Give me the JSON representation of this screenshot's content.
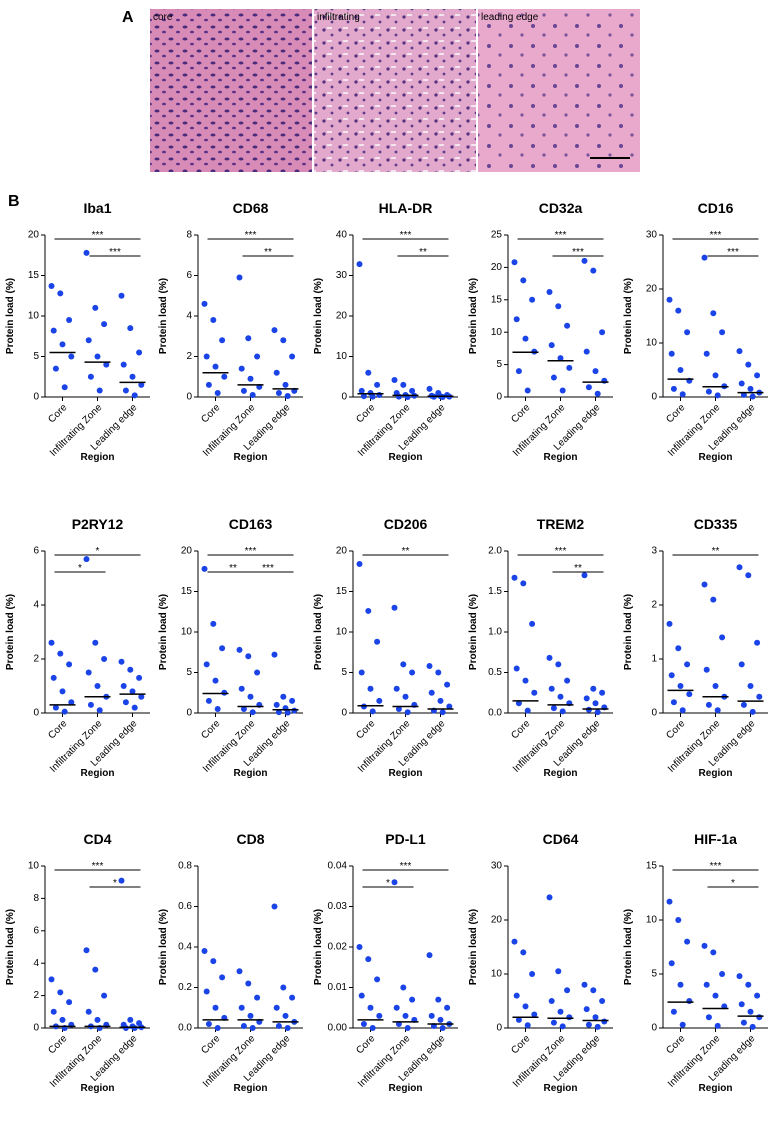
{
  "panel_a": {
    "label": "A",
    "images": [
      "core",
      "infiltrating",
      "leading edge"
    ]
  },
  "panel_b": {
    "label": "B"
  },
  "chart_data": [
    {
      "type": "dotplot",
      "title": "Iba1",
      "ylabel": "Protein load (%)",
      "xlabel": "Region",
      "categories": [
        "Core",
        "Infiltrating Zone",
        "Leading edge"
      ],
      "color": "#1a44e8",
      "values": [
        [
          13.7,
          12.8,
          9.5,
          8.2,
          6.5,
          5,
          3.5,
          1.2
        ],
        [
          17.8,
          11,
          9,
          7,
          5,
          4,
          2.5,
          0.8
        ],
        [
          12.5,
          8.5,
          5.5,
          4,
          2.5,
          1.5,
          0.8,
          0.2
        ]
      ],
      "medians": [
        5.5,
        4.3,
        1.8
      ],
      "ylim": [
        0,
        20
      ],
      "yticks": [
        0,
        5,
        10,
        15,
        20
      ],
      "comparisons": [
        {
          "from": 0,
          "to": 2,
          "label": "***"
        },
        {
          "from": 1,
          "to": 2,
          "label": "***"
        }
      ]
    },
    {
      "type": "dotplot",
      "title": "CD68",
      "ylabel": "Protein load (%)",
      "xlabel": "Region",
      "categories": [
        "Core",
        "Infiltrating Zone",
        "Leading edge"
      ],
      "color": "#1a44e8",
      "values": [
        [
          4.6,
          3.8,
          2.8,
          2,
          1.5,
          1,
          0.6,
          0.2
        ],
        [
          5.9,
          2.9,
          2,
          1.4,
          0.9,
          0.5,
          0.3,
          0.1
        ],
        [
          3.3,
          2.8,
          2,
          1.2,
          0.6,
          0.3,
          0.2,
          0.05
        ]
      ],
      "medians": [
        1.2,
        0.6,
        0.4
      ],
      "ylim": [
        0,
        8
      ],
      "yticks": [
        0,
        2,
        4,
        6,
        8
      ],
      "comparisons": [
        {
          "from": 0,
          "to": 2,
          "label": "***"
        },
        {
          "from": 1,
          "to": 2,
          "label": "**"
        }
      ]
    },
    {
      "type": "dotplot",
      "title": "HLA-DR",
      "ylabel": "Protein load (%)",
      "xlabel": "Region",
      "categories": [
        "Core",
        "Infiltrating Zone",
        "Leading edge"
      ],
      "color": "#1a44e8",
      "values": [
        [
          32.8,
          6,
          3,
          1.5,
          1,
          0.5,
          0.2,
          0.1
        ],
        [
          4.2,
          3,
          1.5,
          1,
          0.5,
          0.3,
          0.1,
          0
        ],
        [
          2,
          1,
          0.5,
          0.3,
          0.2,
          0.1,
          0.05,
          0
        ]
      ],
      "medians": [
        0.8,
        0.4,
        0.2
      ],
      "ylim": [
        0,
        40
      ],
      "yticks": [
        0,
        10,
        20,
        30,
        40
      ],
      "comparisons": [
        {
          "from": 0,
          "to": 2,
          "label": "***"
        },
        {
          "from": 1,
          "to": 2,
          "label": "**"
        }
      ]
    },
    {
      "type": "dotplot",
      "title": "CD32a",
      "ylabel": "Protein load (%)",
      "xlabel": "Region",
      "categories": [
        "Core",
        "Infiltrating Zone",
        "Leading edge"
      ],
      "color": "#1a44e8",
      "values": [
        [
          20.8,
          18,
          15,
          12,
          9,
          7,
          4,
          1
        ],
        [
          16.2,
          14,
          11,
          8,
          6,
          4.5,
          3,
          1
        ],
        [
          21,
          19.5,
          10,
          7,
          4,
          2.5,
          1.5,
          0.5
        ]
      ],
      "medians": [
        6.9,
        5.6,
        2.3
      ],
      "ylim": [
        0,
        25
      ],
      "yticks": [
        0,
        5,
        10,
        15,
        20,
        25
      ],
      "comparisons": [
        {
          "from": 0,
          "to": 2,
          "label": "***"
        },
        {
          "from": 1,
          "to": 2,
          "label": "***"
        }
      ]
    },
    {
      "type": "dotplot",
      "title": "CD16",
      "ylabel": "Protein load (%)",
      "xlabel": "Region",
      "categories": [
        "Core",
        "Infiltrating Zone",
        "Leading edge"
      ],
      "color": "#1a44e8",
      "values": [
        [
          18,
          16,
          12,
          8,
          5,
          3,
          1.5,
          0.5
        ],
        [
          25.8,
          15.5,
          12,
          8,
          4,
          2,
          1,
          0.3
        ],
        [
          8.5,
          6,
          4,
          2.5,
          1.5,
          0.8,
          0.4,
          0.1
        ]
      ],
      "medians": [
        3.3,
        1.9,
        0.8
      ],
      "ylim": [
        0,
        30
      ],
      "yticks": [
        0,
        10,
        20,
        30
      ],
      "comparisons": [
        {
          "from": 0,
          "to": 2,
          "label": "***"
        },
        {
          "from": 1,
          "to": 2,
          "label": "***"
        }
      ]
    },
    {
      "type": "dotplot",
      "title": "P2RY12",
      "ylabel": "Protein load (%)",
      "xlabel": "Region",
      "categories": [
        "Core",
        "Infiltrating Zone",
        "Leading edge"
      ],
      "color": "#1a44e8",
      "values": [
        [
          2.6,
          2.2,
          1.8,
          1.3,
          0.8,
          0.4,
          0.2,
          0.05
        ],
        [
          5.7,
          2.6,
          2,
          1.5,
          1,
          0.6,
          0.3,
          0.1
        ],
        [
          1.9,
          1.6,
          1.3,
          1,
          0.8,
          0.6,
          0.4,
          0.2
        ]
      ],
      "medians": [
        0.3,
        0.6,
        0.7
      ],
      "ylim": [
        0,
        6
      ],
      "yticks": [
        0,
        2,
        4,
        6
      ],
      "comparisons": [
        {
          "from": 0,
          "to": 2,
          "label": "*"
        },
        {
          "from": 0,
          "to": 1,
          "label": "*"
        }
      ]
    },
    {
      "type": "dotplot",
      "title": "CD163",
      "ylabel": "Protein load (%)",
      "xlabel": "Region",
      "categories": [
        "Core",
        "Infiltrating Zone",
        "Leading edge"
      ],
      "color": "#1a44e8",
      "values": [
        [
          17.8,
          11,
          8,
          6,
          4,
          2.5,
          1.5,
          0.5
        ],
        [
          7.8,
          7,
          5,
          3,
          2,
          1,
          0.5,
          0.1
        ],
        [
          7.2,
          2,
          1.5,
          1,
          0.6,
          0.3,
          0.1,
          0.05
        ]
      ],
      "medians": [
        2.4,
        0.8,
        0.4
      ],
      "ylim": [
        0,
        20
      ],
      "yticks": [
        0,
        5,
        10,
        15,
        20
      ],
      "comparisons": [
        {
          "from": 0,
          "to": 2,
          "label": "***"
        },
        {
          "from": 0,
          "to": 1,
          "label": "**"
        },
        {
          "from": 1,
          "to": 2,
          "label": "***"
        }
      ]
    },
    {
      "type": "dotplot",
      "title": "CD206",
      "ylabel": "Protein load (%)",
      "xlabel": "Region",
      "categories": [
        "Core",
        "Infiltrating Zone",
        "Leading edge"
      ],
      "color": "#1a44e8",
      "values": [
        [
          18.4,
          12.6,
          8.8,
          5,
          3,
          1.5,
          0.8,
          0.2
        ],
        [
          13,
          6,
          5,
          3,
          2,
          1,
          0.5,
          0.1
        ],
        [
          5.8,
          5,
          3.5,
          2.5,
          1.5,
          0.8,
          0.3,
          0.1
        ]
      ],
      "medians": [
        0.9,
        0.8,
        0.5
      ],
      "ylim": [
        0,
        20
      ],
      "yticks": [
        0,
        5,
        10,
        15,
        20
      ],
      "comparisons": [
        {
          "from": 0,
          "to": 2,
          "label": "**"
        }
      ]
    },
    {
      "type": "dotplot",
      "title": "TREM2",
      "ylabel": "Protein load (%)",
      "xlabel": "Region",
      "categories": [
        "Core",
        "Infiltrating Zone",
        "Leading edge"
      ],
      "color": "#1a44e8",
      "values": [
        [
          1.67,
          1.6,
          1.1,
          0.55,
          0.4,
          0.25,
          0.12,
          0.03
        ],
        [
          0.68,
          0.6,
          0.4,
          0.3,
          0.2,
          0.12,
          0.06,
          0.02
        ],
        [
          1.7,
          0.3,
          0.25,
          0.18,
          0.12,
          0.07,
          0.04,
          0.01
        ]
      ],
      "medians": [
        0.15,
        0.1,
        0.05
      ],
      "ylim": [
        0,
        2
      ],
      "yticks": [
        {
          "value": 0,
          "label": "0.0"
        },
        {
          "value": 0.5,
          "label": "0.5"
        },
        {
          "value": 1,
          "label": "1.0"
        },
        {
          "value": 1.5,
          "label": "1.5"
        },
        {
          "value": 2,
          "label": "2.0"
        }
      ],
      "comparisons": [
        {
          "from": 0,
          "to": 2,
          "label": "***"
        },
        {
          "from": 1,
          "to": 2,
          "label": "**"
        }
      ]
    },
    {
      "type": "dotplot",
      "title": "CD335",
      "ylabel": "Protein load (%)",
      "xlabel": "Region",
      "categories": [
        "Core",
        "Infiltrating Zone",
        "Leading edge"
      ],
      "color": "#1a44e8",
      "values": [
        [
          1.65,
          1.2,
          0.9,
          0.7,
          0.5,
          0.35,
          0.2,
          0.05
        ],
        [
          2.38,
          2.1,
          1.4,
          0.8,
          0.5,
          0.3,
          0.15,
          0.05
        ],
        [
          2.7,
          2.55,
          1.3,
          0.9,
          0.5,
          0.3,
          0.15,
          0.02
        ]
      ],
      "medians": [
        0.42,
        0.3,
        0.22
      ],
      "ylim": [
        0,
        3
      ],
      "yticks": [
        0,
        1,
        2,
        3
      ],
      "comparisons": [
        {
          "from": 0,
          "to": 2,
          "label": "**"
        }
      ]
    },
    {
      "type": "dotplot",
      "title": "CD4",
      "ylabel": "Protein load (%)",
      "xlabel": "Region",
      "categories": [
        "Core",
        "Infiltrating Zone",
        "Leading edge"
      ],
      "color": "#1a44e8",
      "values": [
        [
          3,
          2.2,
          1.6,
          1,
          0.5,
          0.2,
          0.1,
          0
        ],
        [
          4.8,
          3.6,
          2,
          1,
          0.5,
          0.2,
          0.1,
          0
        ],
        [
          9.1,
          0.5,
          0.3,
          0.2,
          0.1,
          0.05,
          0,
          0
        ]
      ],
      "medians": [
        0.1,
        0.1,
        0.05
      ],
      "ylim": [
        0,
        10
      ],
      "yticks": [
        0,
        2,
        4,
        6,
        8,
        10
      ],
      "comparisons": [
        {
          "from": 0,
          "to": 2,
          "label": "***"
        },
        {
          "from": 1,
          "to": 2,
          "label": "*"
        }
      ]
    },
    {
      "type": "dotplot",
      "title": "CD8",
      "ylabel": "Protein load (%)",
      "xlabel": "Region",
      "categories": [
        "Core",
        "Infiltrating Zone",
        "Leading edge"
      ],
      "color": "#1a44e8",
      "values": [
        [
          0.38,
          0.33,
          0.25,
          0.18,
          0.1,
          0.05,
          0.02,
          0
        ],
        [
          0.28,
          0.22,
          0.15,
          0.1,
          0.06,
          0.03,
          0.01,
          0
        ],
        [
          0.6,
          0.2,
          0.15,
          0.1,
          0.06,
          0.03,
          0.01,
          0
        ]
      ],
      "medians": [
        0.04,
        0.04,
        0.03
      ],
      "ylim": [
        0,
        0.8
      ],
      "yticks": [
        {
          "value": 0,
          "label": "0.0"
        },
        {
          "value": 0.2,
          "label": "0.2"
        },
        {
          "value": 0.4,
          "label": "0.4"
        },
        {
          "value": 0.6,
          "label": "0.6"
        },
        {
          "value": 0.8,
          "label": "0.8"
        }
      ],
      "comparisons": []
    },
    {
      "type": "dotplot",
      "title": "PD-L1",
      "ylabel": "Protein load (%)",
      "xlabel": "Region",
      "categories": [
        "Core",
        "Infiltrating Zone",
        "Leading edge"
      ],
      "color": "#1a44e8",
      "values": [
        [
          0.02,
          0.017,
          0.012,
          0.008,
          0.005,
          0.003,
          0.001,
          0
        ],
        [
          0.036,
          0.01,
          0.007,
          0.005,
          0.003,
          0.002,
          0.001,
          0
        ],
        [
          0.018,
          0.007,
          0.005,
          0.003,
          0.002,
          0.001,
          0.0005,
          0
        ]
      ],
      "medians": [
        0.002,
        0.0015,
        0.001
      ],
      "ylim": [
        0,
        0.04
      ],
      "yticks": [
        {
          "value": 0,
          "label": "0.00"
        },
        {
          "value": 0.01,
          "label": "0.01"
        },
        {
          "value": 0.02,
          "label": "0.02"
        },
        {
          "value": 0.03,
          "label": "0.03"
        },
        {
          "value": 0.04,
          "label": "0.04"
        }
      ],
      "comparisons": [
        {
          "from": 0,
          "to": 2,
          "label": "***"
        },
        {
          "from": 0,
          "to": 1,
          "label": "*"
        }
      ]
    },
    {
      "type": "dotplot",
      "title": "CD64",
      "ylabel": "Protein load (%)",
      "xlabel": "Region",
      "categories": [
        "Core",
        "Infiltrating Zone",
        "Leading edge"
      ],
      "color": "#1a44e8",
      "values": [
        [
          16,
          14,
          10,
          6,
          4,
          2.5,
          1.5,
          0.5
        ],
        [
          24.2,
          10.5,
          7,
          5,
          3,
          2,
          1,
          0.3
        ],
        [
          8,
          7,
          5,
          3.5,
          2,
          1.2,
          0.6,
          0.2
        ]
      ],
      "medians": [
        2,
        1.8,
        1.4
      ],
      "ylim": [
        0,
        30
      ],
      "yticks": [
        0,
        10,
        20,
        30
      ],
      "comparisons": []
    },
    {
      "type": "dotplot",
      "title": "HIF-1a",
      "ylabel": "Protein load (%)",
      "xlabel": "Region",
      "categories": [
        "Core",
        "Infiltrating Zone",
        "Leading edge"
      ],
      "color": "#1a44e8",
      "values": [
        [
          11.7,
          10,
          8,
          6,
          4,
          2.5,
          1.5,
          0.3
        ],
        [
          7.6,
          7,
          5,
          4,
          3,
          2,
          1,
          0.2
        ],
        [
          4.8,
          4,
          3,
          2.2,
          1.5,
          1,
          0.5,
          0.1
        ]
      ],
      "medians": [
        2.4,
        1.8,
        1.1
      ],
      "ylim": [
        0,
        15
      ],
      "yticks": [
        0,
        5,
        10,
        15
      ],
      "comparisons": [
        {
          "from": 0,
          "to": 2,
          "label": "***"
        },
        {
          "from": 1,
          "to": 2,
          "label": "*"
        }
      ]
    }
  ]
}
